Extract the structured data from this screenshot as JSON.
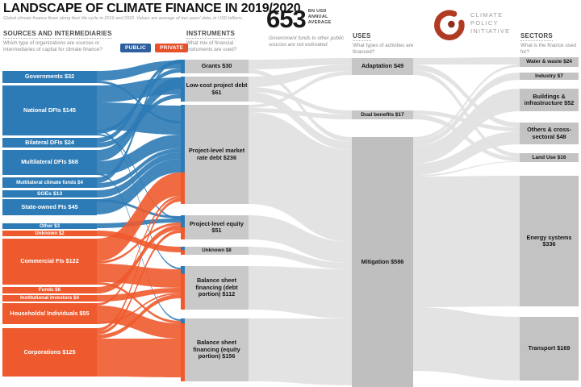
{
  "chart_data": {
    "type": "sankey",
    "title": "LANDSCAPE OF CLIMATE FINANCE IN 2019/2020",
    "subtitle": "Global climate finance flows along their life cycle in 2019 and 2020. Values are average of two years' data, in USD billions.",
    "headline": {
      "value": "653",
      "unit": "BN USD ANNUAL AVERAGE"
    },
    "note": "Government funds to other public sources are not estimated",
    "logo_text": "CLIMATE POLICY INITIATIVE",
    "legend": [
      {
        "label": "PUBLIC",
        "color": "#2f5f9f"
      },
      {
        "label": "PRIVATE",
        "color": "#e8502a"
      }
    ],
    "colors": {
      "public": "#2d7bb6",
      "private": "#ee5a2d",
      "node_gray": "#c6c6c6",
      "flow_gray": "#e2e2e2"
    },
    "columns": {
      "sources": {
        "header": "SOURCES AND INTERMEDIARIES",
        "question": "Which type of organizations are sources or intermediaries of capital for climate finance?",
        "nodes": [
          {
            "name": "Governments",
            "value": 32,
            "label": "Governments $32",
            "type": "public"
          },
          {
            "name": "National DFIs",
            "value": 145,
            "label": "National DFIs $145",
            "type": "public"
          },
          {
            "name": "Bilateral DFIs",
            "value": 24,
            "label": "Bilateral DFIs $24",
            "type": "public"
          },
          {
            "name": "Multilateral DFIs",
            "value": 68,
            "label": "Multilateral DFIs $68",
            "type": "public"
          },
          {
            "name": "Multilateral climate funds",
            "value": 4,
            "label": "Multilateral climate funds $4",
            "type": "public"
          },
          {
            "name": "SOEs",
            "value": 13,
            "label": "SOEs $13",
            "type": "public"
          },
          {
            "name": "State-owned FIs",
            "value": 45,
            "label": "State-owned FIs $45",
            "type": "public"
          },
          {
            "name": "Other",
            "value": 3,
            "label": "Other $3",
            "type": "public"
          },
          {
            "name": "Unknown",
            "value": 2,
            "label": "Unknown $2",
            "type": "private"
          },
          {
            "name": "Commercial FIs",
            "value": 122,
            "label": "Commercial FIs $122",
            "type": "private"
          },
          {
            "name": "Funds",
            "value": 6,
            "label": "Funds $6",
            "type": "private"
          },
          {
            "name": "Institutional investors",
            "value": 4,
            "label": "Institutional investors $4",
            "type": "private"
          },
          {
            "name": "Households/Individuals",
            "value": 55,
            "label": "Households/ Individuals $55",
            "type": "private"
          },
          {
            "name": "Corporations",
            "value": 125,
            "label": "Corporations $125",
            "type": "private"
          }
        ]
      },
      "instruments": {
        "header": "INSTRUMENTS",
        "question": "What mix of financial instruments are used?",
        "nodes": [
          {
            "name": "Grants",
            "value": 30,
            "label": "Grants $30"
          },
          {
            "name": "Low-cost project debt",
            "value": 61,
            "label": "Low-cost project debt $61"
          },
          {
            "name": "Project-level market rate debt",
            "value": 236,
            "label": "Project-level market rate debt $236"
          },
          {
            "name": "Project-level equity",
            "value": 51,
            "label": "Project-level equity $51"
          },
          {
            "name": "Unknown",
            "value": 8,
            "label": "Unknown $8"
          },
          {
            "name": "Balance sheet financing (debt portion)",
            "value": 112,
            "label": "Balance sheet financing (debt portion) $112"
          },
          {
            "name": "Balance sheet financing (equity portion)",
            "value": 156,
            "label": "Balance sheet financing (equity portion) $156"
          }
        ]
      },
      "uses": {
        "header": "USES",
        "question": "What types of activities are financed?",
        "nodes": [
          {
            "name": "Adaptation",
            "value": 49,
            "label": "Adaptation $49"
          },
          {
            "name": "Dual benefits",
            "value": 17,
            "label": "Dual benefits $17"
          },
          {
            "name": "Mitigation",
            "value": 586,
            "label": "Mitigation $586"
          }
        ]
      },
      "sectors": {
        "header": "SECTORS",
        "question": "What is the finance used for?",
        "nodes": [
          {
            "name": "Water & waste",
            "value": 24,
            "label": "Water & waste $24"
          },
          {
            "name": "Industry",
            "value": 7,
            "label": "Industry $7"
          },
          {
            "name": "Buildings & infrastructure",
            "value": 52,
            "label": "Buildings & infrastructure $52"
          },
          {
            "name": "Others & cross-sectoral",
            "value": 48,
            "label": "Others & cross-sectoral $48"
          },
          {
            "name": "Land Use",
            "value": 16,
            "label": "Land Use $16"
          },
          {
            "name": "Energy systems",
            "value": 336,
            "label": "Energy systems $336"
          },
          {
            "name": "Transport",
            "value": 169,
            "label": "Transport $169"
          }
        ]
      }
    }
  }
}
